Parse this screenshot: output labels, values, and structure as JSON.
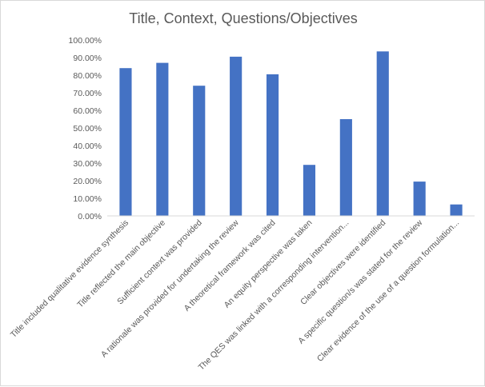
{
  "chart_data": {
    "type": "bar",
    "title": "Title, Context, Questions/Objectives",
    "xlabel": "",
    "ylabel": "",
    "ylim": [
      0,
      1.0
    ],
    "yticks": [
      "0.00%",
      "10.00%",
      "20.00%",
      "30.00%",
      "40.00%",
      "50.00%",
      "60.00%",
      "70.00%",
      "80.00%",
      "90.00%",
      "100.00%"
    ],
    "grid": false,
    "legend": "none",
    "bar_color": "#4472c4",
    "categories": [
      "Title included qualitative evidence synthesis",
      "Title reflected the main objective",
      "Sufficient context was provided",
      "A rationale was provided for undertaking the review",
      "A theoretical framework was cited",
      "An equity perspective was taken",
      "The QES was linked with a corresponding intervention...",
      "Clear objectives were identified",
      "A specific question/s was stated for the review",
      "Clear evidence of the use of a question formulation..."
    ],
    "values": [
      0.84,
      0.87,
      0.74,
      0.905,
      0.805,
      0.29,
      0.55,
      0.935,
      0.195,
      0.065
    ]
  }
}
